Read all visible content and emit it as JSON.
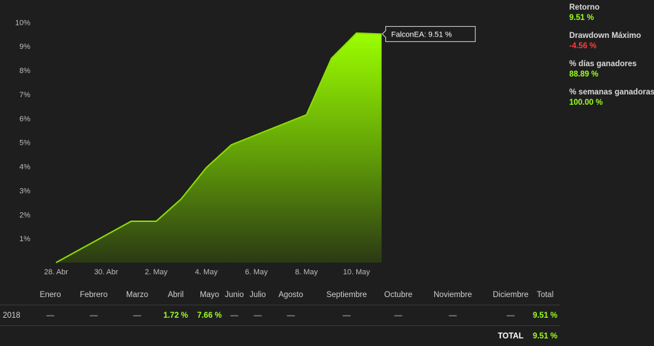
{
  "chart_data": {
    "type": "area",
    "y_ticks": [
      "1%",
      "2%",
      "3%",
      "4%",
      "5%",
      "6%",
      "7%",
      "8%",
      "9%",
      "10%"
    ],
    "x_ticks": [
      "28. Abr",
      "30. Abr",
      "2. May",
      "4. May",
      "6. May",
      "8. May",
      "10. May"
    ],
    "ylim": [
      0,
      10
    ],
    "xlim": [
      "2018-04-27",
      "2018-05-18"
    ],
    "x": [
      "2018-04-28",
      "2018-05-01",
      "2018-05-02",
      "2018-05-03",
      "2018-05-04",
      "2018-05-05",
      "2018-05-08",
      "2018-05-09",
      "2018-05-10",
      "2018-05-11"
    ],
    "series": [
      {
        "name": "FalconEA",
        "values": [
          0.0,
          1.72,
          1.72,
          2.65,
          3.95,
          4.9,
          6.15,
          8.5,
          9.55,
          9.51
        ]
      }
    ],
    "grid": false,
    "tooltip": "FalconEA: 9.51 %",
    "color": "#8ee000"
  },
  "stats": [
    {
      "label": "Retorno",
      "value": "9.51 %",
      "color": "#9bff1f"
    },
    {
      "label": "Drawdown Máximo",
      "value": "-4.56 %",
      "color": "#ff3b3b"
    },
    {
      "label": "% días ganadores",
      "value": "88.89 %",
      "color": "#9bff1f"
    },
    {
      "label": "% semanas ganadoras",
      "value": "100.00 %",
      "color": "#9bff1f"
    }
  ],
  "monthly_table": {
    "headers": [
      "",
      "Enero",
      "Febrero",
      "Marzo",
      "Abril",
      "Mayo",
      "Junio",
      "Julio",
      "Agosto",
      "Septiembre",
      "Octubre",
      "Noviembre",
      "Diciembre",
      "Total"
    ],
    "row": {
      "year": "2018",
      "values": [
        "—",
        "—",
        "—",
        "1.72 %",
        "7.66 %",
        "—",
        "—",
        "—",
        "—",
        "—",
        "—",
        "—",
        "9.51 %"
      ]
    },
    "total_label": "TOTAL",
    "total_value": "9.51 %"
  }
}
